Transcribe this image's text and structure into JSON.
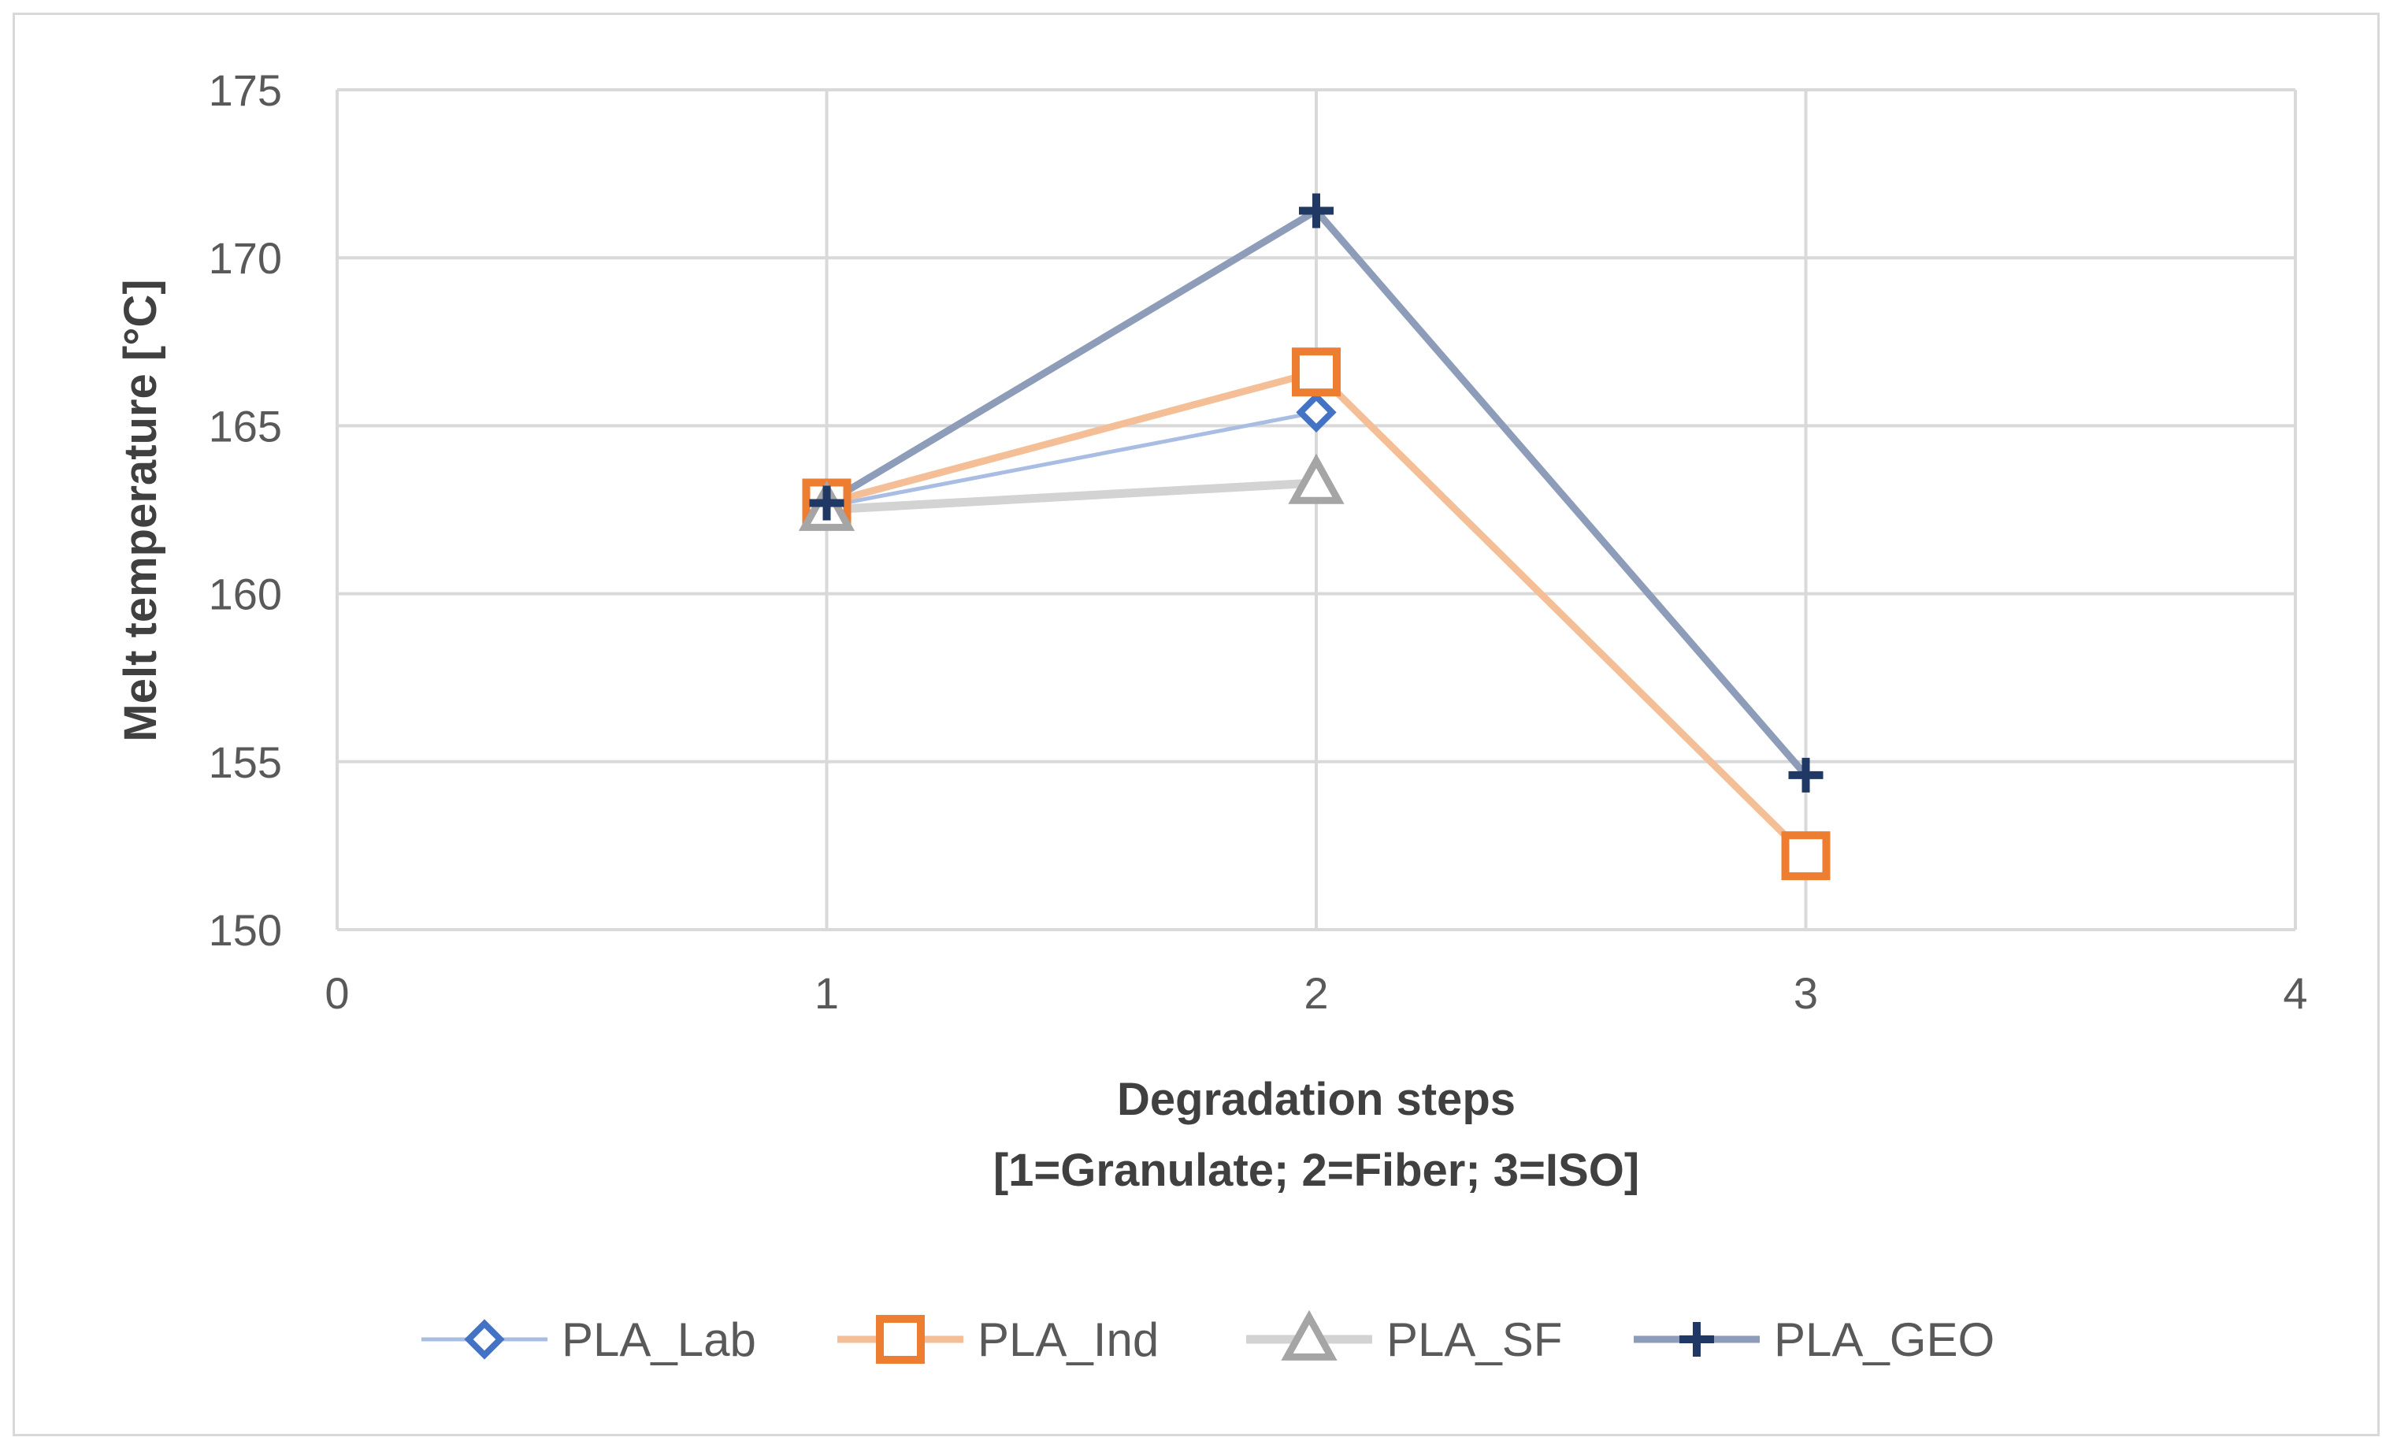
{
  "chart_data": {
    "type": "line",
    "title": "",
    "xlabel": "Degradation steps",
    "xlabel_line2": "[1=Granulate; 2=Fiber; 3=ISO]",
    "ylabel": "Melt temperature [°C]",
    "xlim": [
      0,
      4
    ],
    "ylim": [
      150,
      175
    ],
    "xticks": [
      0,
      1,
      2,
      3,
      4
    ],
    "yticks": [
      150,
      155,
      160,
      165,
      170,
      175
    ],
    "grid": true,
    "legend_position": "bottom",
    "series": [
      {
        "name": "PLA_Lab",
        "x": [
          1,
          2
        ],
        "values": [
          162.6,
          165.4
        ],
        "line_color": "#a9bde3",
        "marker_color": "#4472c4",
        "marker": "diamond"
      },
      {
        "name": "PLA_Ind",
        "x": [
          1,
          2,
          3
        ],
        "values": [
          162.7,
          166.6,
          152.2
        ],
        "line_color": "#f4be96",
        "marker_color": "#ed7d31",
        "marker": "square"
      },
      {
        "name": "PLA_SF",
        "x": [
          1,
          2
        ],
        "values": [
          162.5,
          163.3
        ],
        "line_color": "#d3d3d3",
        "marker_color": "#a5a5a5",
        "marker": "triangle"
      },
      {
        "name": "PLA_GEO",
        "x": [
          1,
          2,
          3
        ],
        "values": [
          162.7,
          171.4,
          154.6
        ],
        "line_color": "#8d9db9",
        "marker_color": "#203864",
        "marker": "plus"
      }
    ]
  }
}
